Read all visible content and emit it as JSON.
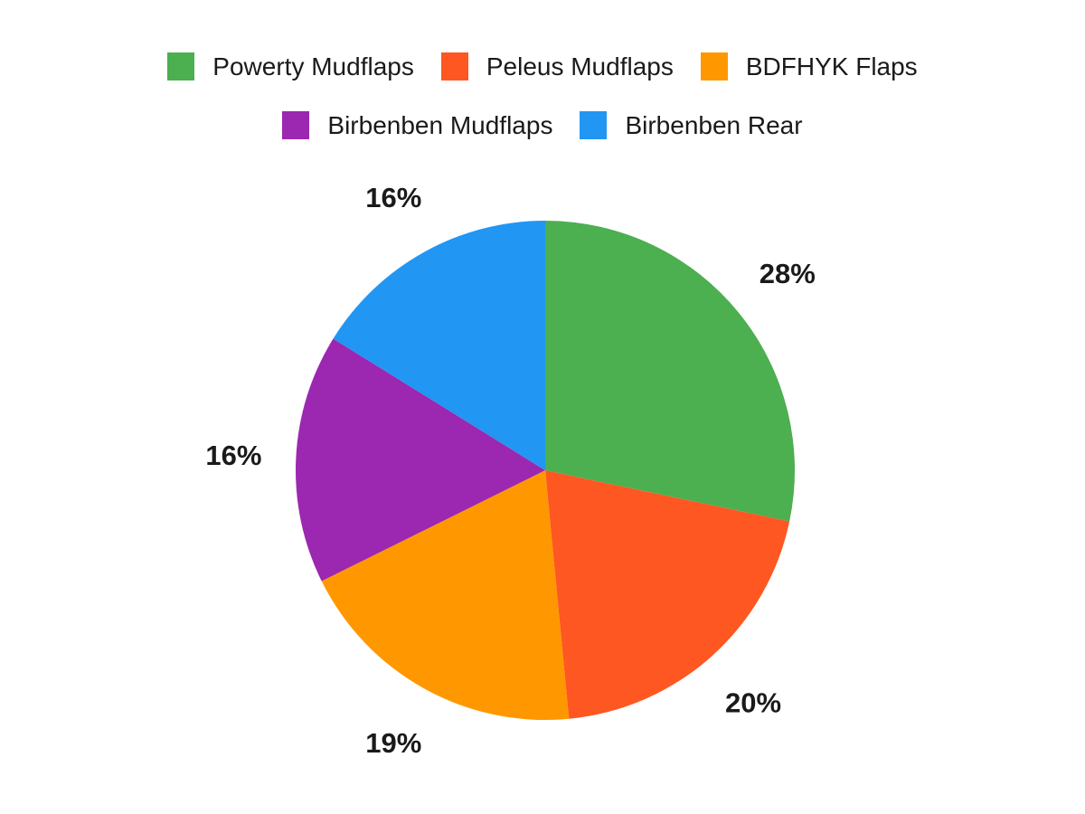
{
  "chart_data": {
    "type": "pie",
    "title": "",
    "categories": [
      "Powerty Mudflaps",
      "Peleus Mudflaps",
      "BDFHYK Flaps",
      "Birbenben Mudflaps",
      "Birbenben Rear"
    ],
    "values": [
      28,
      20,
      19,
      16,
      16
    ],
    "display_labels": [
      "28%",
      "20%",
      "19%",
      "16%",
      "16%"
    ],
    "colors": [
      "#4CAF50",
      "#FF5722",
      "#FF9800",
      "#9C27B0",
      "#2196F3"
    ],
    "legend_position": "top",
    "legend_rows": [
      [
        0,
        1,
        2
      ],
      [
        3,
        4
      ]
    ],
    "start_angle_deg": 0,
    "direction": "clockwise",
    "labels_outside": true,
    "grid": false,
    "text_color": "#1a1a1a",
    "background_color": "#ffffff"
  }
}
